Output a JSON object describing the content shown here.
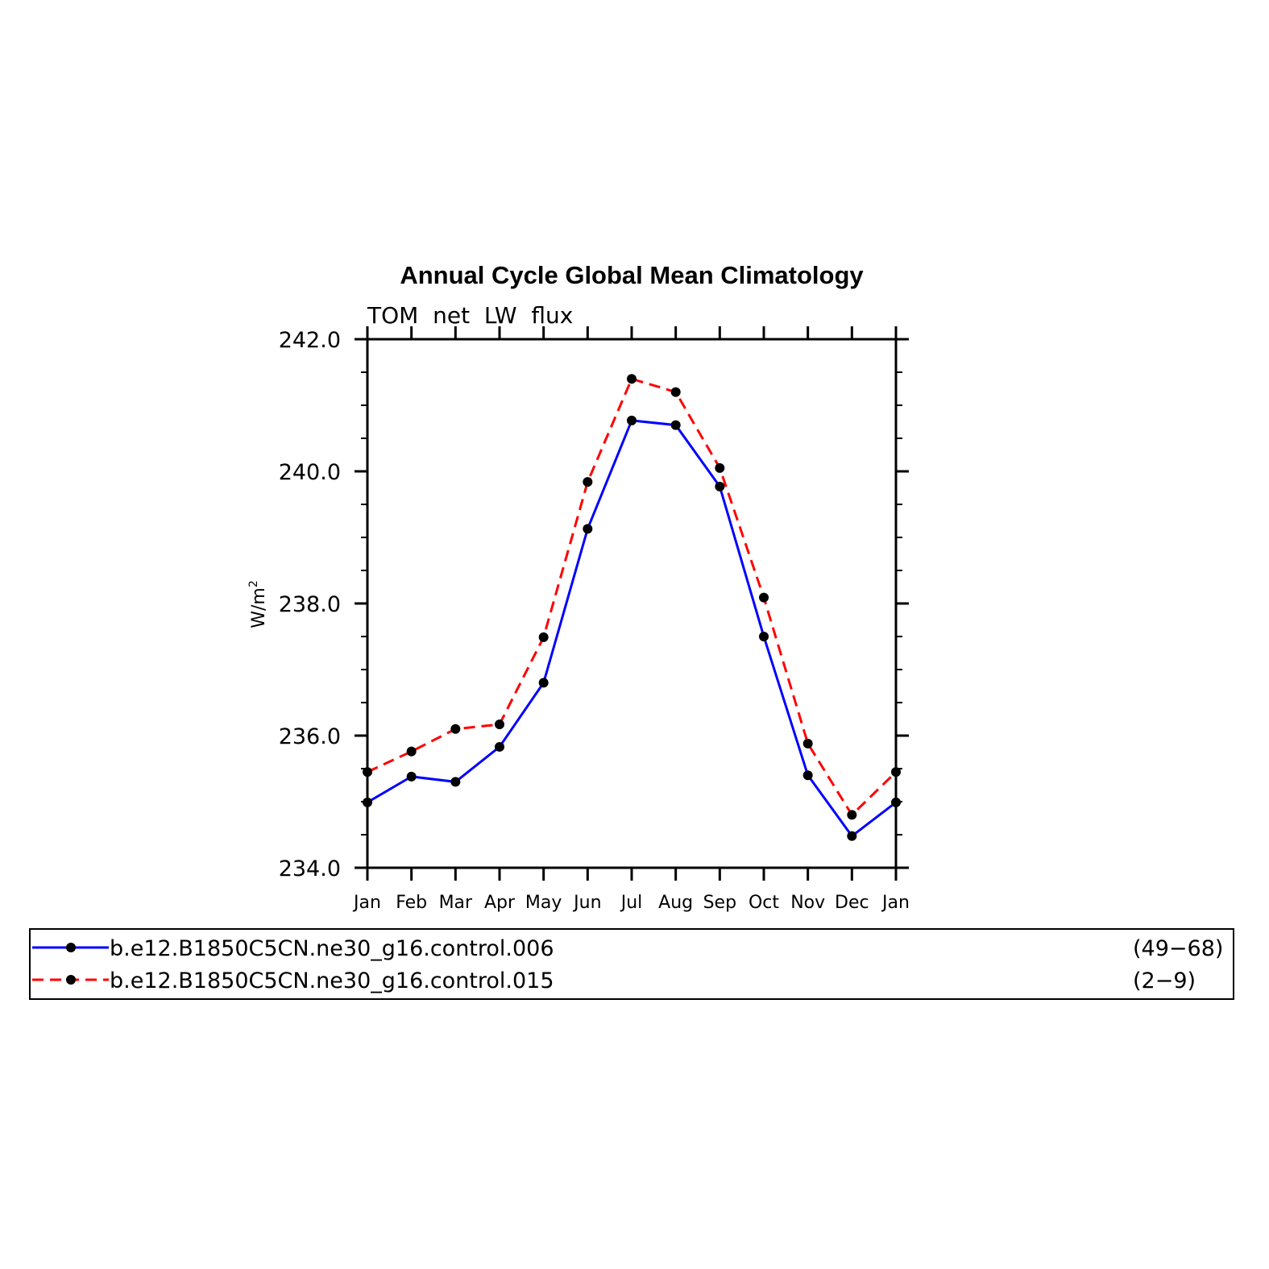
{
  "chart_data": {
    "type": "line",
    "title": "Annual Cycle Global Mean Climatology",
    "subtitle": "TOM  net  LW  flux",
    "xlabel": "",
    "ylabel": "W/m",
    "ylabel_superscript": "2",
    "categories": [
      "Jan",
      "Feb",
      "Mar",
      "Apr",
      "May",
      "Jun",
      "Jul",
      "Aug",
      "Sep",
      "Oct",
      "Nov",
      "Dec",
      "Jan"
    ],
    "ylim": [
      234.0,
      242.0
    ],
    "yticks": [
      "234.0",
      "236.0",
      "238.0",
      "240.0",
      "242.0"
    ],
    "ytick_values": [
      234,
      236,
      238,
      240,
      242
    ],
    "grid": false,
    "legend_position": "bottom",
    "series": [
      {
        "name": "b.e12.B1850C5CN.ne30_g16.control.006",
        "years": "(49−68)",
        "color": "#0000ff",
        "dash": "solid",
        "values": [
          234.99,
          235.38,
          235.3,
          235.83,
          236.8,
          239.13,
          240.77,
          240.7,
          239.77,
          237.5,
          235.4,
          234.48,
          234.99
        ]
      },
      {
        "name": "b.e12.B1850C5CN.ne30_g16.control.015",
        "years": "(2−9)",
        "color": "#ff0000",
        "dash": "dashed",
        "values": [
          235.45,
          235.76,
          236.1,
          236.17,
          237.49,
          239.84,
          241.4,
          241.2,
          240.05,
          238.09,
          235.88,
          234.8,
          235.45
        ]
      }
    ]
  }
}
